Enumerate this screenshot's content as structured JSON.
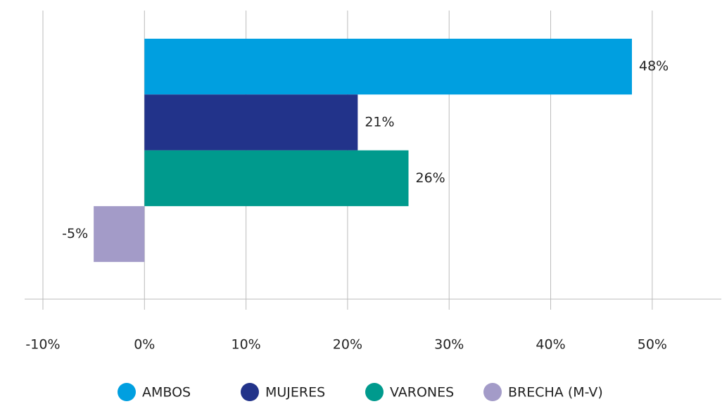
{
  "chart_data": {
    "type": "hbar",
    "categories": [
      null
    ],
    "series": [
      {
        "name": "AMBOS",
        "color": "#009fe0",
        "values": [
          48
        ],
        "value_labels": [
          "48%"
        ]
      },
      {
        "name": "MUJERES",
        "color": "#22338a",
        "values": [
          21
        ],
        "value_labels": [
          "21%"
        ]
      },
      {
        "name": "VARONES",
        "color": "#009a8d",
        "values": [
          26
        ],
        "value_labels": [
          "26%"
        ]
      },
      {
        "name": "BRECHA (M-V)",
        "color": "#a39bc8",
        "values": [
          -5
        ],
        "value_labels": [
          "-5%"
        ]
      }
    ],
    "xlim": [
      -11.8,
      56.8
    ],
    "xticks": [
      {
        "value": -10,
        "label": "-10%"
      },
      {
        "value": 0,
        "label": "0%"
      },
      {
        "value": 10,
        "label": "10%"
      },
      {
        "value": 20,
        "label": "20%"
      },
      {
        "value": 30,
        "label": "30%"
      },
      {
        "value": 40,
        "label": "40%"
      },
      {
        "value": 50,
        "label": "50%"
      }
    ],
    "grid": true,
    "legend": "bottom"
  }
}
